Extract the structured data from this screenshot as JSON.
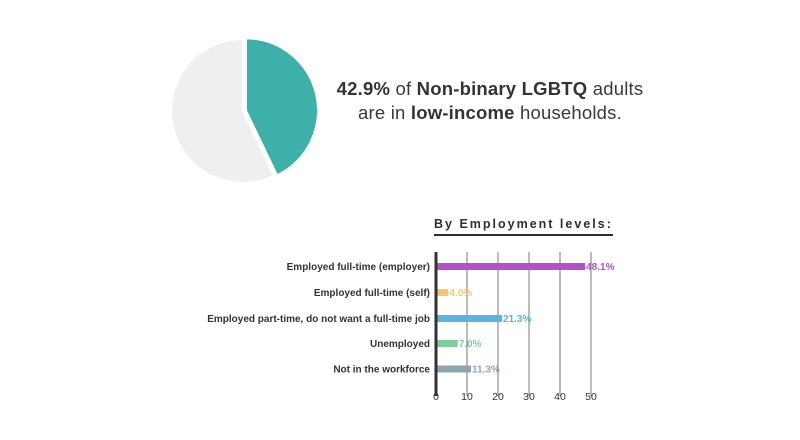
{
  "headline": {
    "pct": "42.9%",
    "text1": " of ",
    "group": "Non-binary LGBTQ",
    "text2": " adults",
    "text3": "are in ",
    "income": "low-income",
    "text4": " households."
  },
  "chart_data": [
    {
      "type": "pie",
      "slices": [
        {
          "value": 42.9,
          "color": "#3db0aa"
        },
        {
          "value": 57.1,
          "color": "#efefef"
        }
      ]
    },
    {
      "type": "bar",
      "orientation": "horizontal",
      "title": "By Employment levels:",
      "categories": [
        "Employed full-time (employer)",
        "Employed full-time (self)",
        "Employed part-time, do not want a full-time job",
        "Unemployed",
        "Not in the workforce"
      ],
      "values": [
        48.1,
        4.0,
        21.3,
        7.0,
        11.3
      ],
      "value_labels": [
        "48.1%",
        "4.0%",
        "21.3%",
        "7.0%",
        "11.3%"
      ],
      "colors": [
        "#b44fd0",
        "#f3c672",
        "#5ab4e0",
        "#7fcf9e",
        "#8ea5b0"
      ],
      "xlim": [
        0,
        52
      ],
      "ticks": [
        0,
        10,
        20,
        30,
        40,
        50
      ],
      "grid": true
    }
  ]
}
